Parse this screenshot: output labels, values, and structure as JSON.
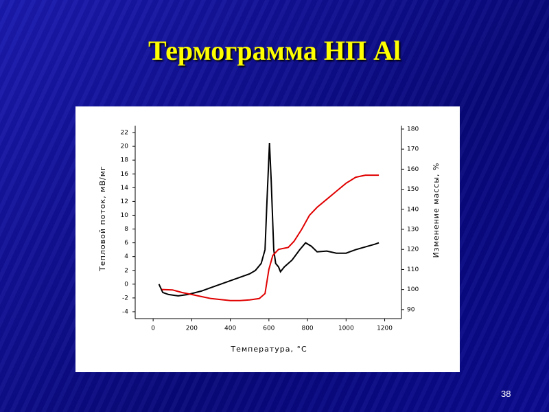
{
  "slide_title": "Термограмма НП Al",
  "page_number": "38",
  "chart_data": {
    "type": "line",
    "xlabel": "Температура, °C",
    "ylabel": "Тепловой поток, мВ/мг",
    "y2label": "Изменение массы, %",
    "xlim": [
      -93,
      1287
    ],
    "xticks": [
      0,
      200,
      400,
      600,
      800,
      1000,
      1200
    ],
    "ylim": [
      -5,
      23
    ],
    "yticks": [
      -4,
      -2,
      0,
      2,
      4,
      6,
      8,
      10,
      12,
      14,
      16,
      18,
      20,
      22
    ],
    "y2lim": [
      85.5,
      181.7
    ],
    "y2ticks": [
      90,
      100,
      110,
      120,
      130,
      140,
      150,
      160,
      170,
      180
    ],
    "series": [
      {
        "color": "#000000",
        "x": [
          30,
          50,
          80,
          130,
          180,
          250,
          300,
          350,
          400,
          450,
          500,
          530,
          560,
          580,
          590,
          603,
          612,
          625,
          635,
          650,
          660,
          680,
          720,
          760,
          790,
          820,
          850,
          900,
          950,
          1000,
          1050,
          1100,
          1150,
          1170
        ],
        "values": [
          0,
          -1.2,
          -1.5,
          -1.7,
          -1.5,
          -1,
          -0.5,
          0,
          0.5,
          1,
          1.5,
          2,
          3,
          5,
          12,
          20.5,
          15,
          5,
          3,
          2.5,
          1.8,
          2.5,
          3.5,
          5,
          6,
          5.5,
          4.7,
          4.8,
          4.5,
          4.5,
          5,
          5.4,
          5.8,
          6
        ]
      },
      {
        "color": "#e00000",
        "axis": "y2",
        "x": [
          45,
          100,
          150,
          200,
          250,
          300,
          350,
          400,
          450,
          500,
          550,
          580,
          600,
          620,
          650,
          700,
          730,
          770,
          810,
          850,
          900,
          950,
          1000,
          1050,
          1100,
          1170
        ],
        "values": [
          100,
          99.8,
          98.5,
          97.5,
          96.5,
          95.5,
          95,
          94.5,
          94.5,
          94.8,
          95.5,
          98,
          110,
          117,
          120,
          121,
          124,
          130,
          137,
          141,
          145,
          149,
          153,
          156,
          157,
          157
        ]
      }
    ]
  }
}
